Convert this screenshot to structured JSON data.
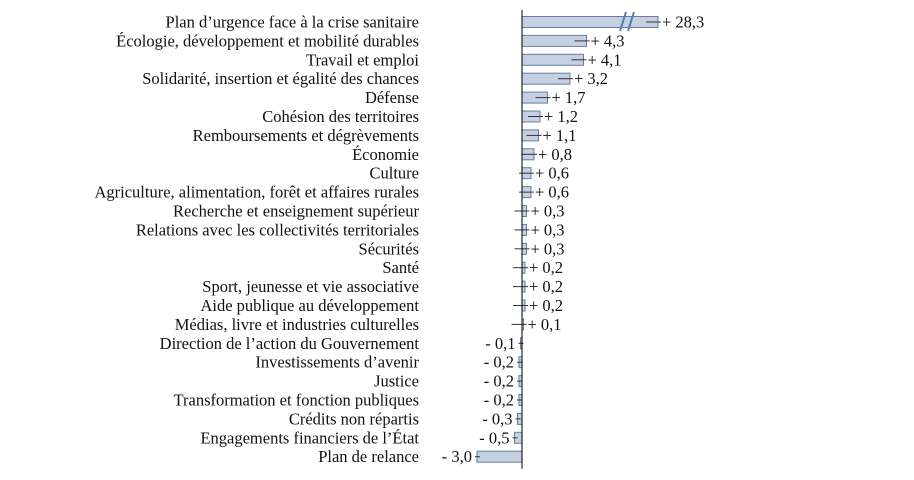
{
  "chart_data": {
    "type": "bar",
    "orientation": "horizontal",
    "axis_break": "on first bar",
    "grid": false,
    "categories": [
      "Plan d’urgence face à la crise sanitaire",
      "Écologie, développement et mobilité durables",
      "Travail et emploi",
      "Solidarité, insertion et égalité des chances",
      "Défense",
      "Cohésion des territoires",
      "Remboursements et dégrèvements",
      "Économie",
      "Culture",
      "Agriculture, alimentation, forêt et affaires rurales",
      "Recherche et enseignement supérieur",
      "Relations avec les collectivités territoriales",
      "Sécurités",
      "Santé",
      "Sport, jeunesse et vie associative",
      "Aide publique au développement",
      "Médias, livre et industries culturelles",
      "Direction de l’action du Gouvernement",
      "Investissements d’avenir",
      "Justice",
      "Transformation et fonction publiques",
      "Crédits non répartis",
      "Engagements financiers de l’État",
      "Plan de relance"
    ],
    "values": [
      28.3,
      4.3,
      4.1,
      3.2,
      1.7,
      1.2,
      1.1,
      0.8,
      0.6,
      0.6,
      0.3,
      0.3,
      0.3,
      0.2,
      0.2,
      0.2,
      0.1,
      -0.1,
      -0.2,
      -0.2,
      -0.2,
      -0.3,
      -0.5,
      -3.0
    ],
    "value_labels": [
      "+ 28,3",
      "+ 4,3",
      "+ 4,1",
      "+ 3,2",
      "+ 1,7",
      "+ 1,2",
      "+ 1,1",
      "+ 0,8",
      "+ 0,6",
      "+ 0,6",
      "+ 0,3",
      "+ 0,3",
      "+ 0,3",
      "+ 0,2",
      "+ 0,2",
      "+ 0,2",
      "+ 0,1",
      "- 0,1",
      "- 0,2",
      "- 0,2",
      "- 0,2",
      "- 0,3",
      "- 0,5",
      "- 3,0"
    ],
    "colors": {
      "bar_fill": "#c5d0e2",
      "bar_stroke": "#6a7d9e",
      "break_mark": "#5a7bb5"
    }
  }
}
